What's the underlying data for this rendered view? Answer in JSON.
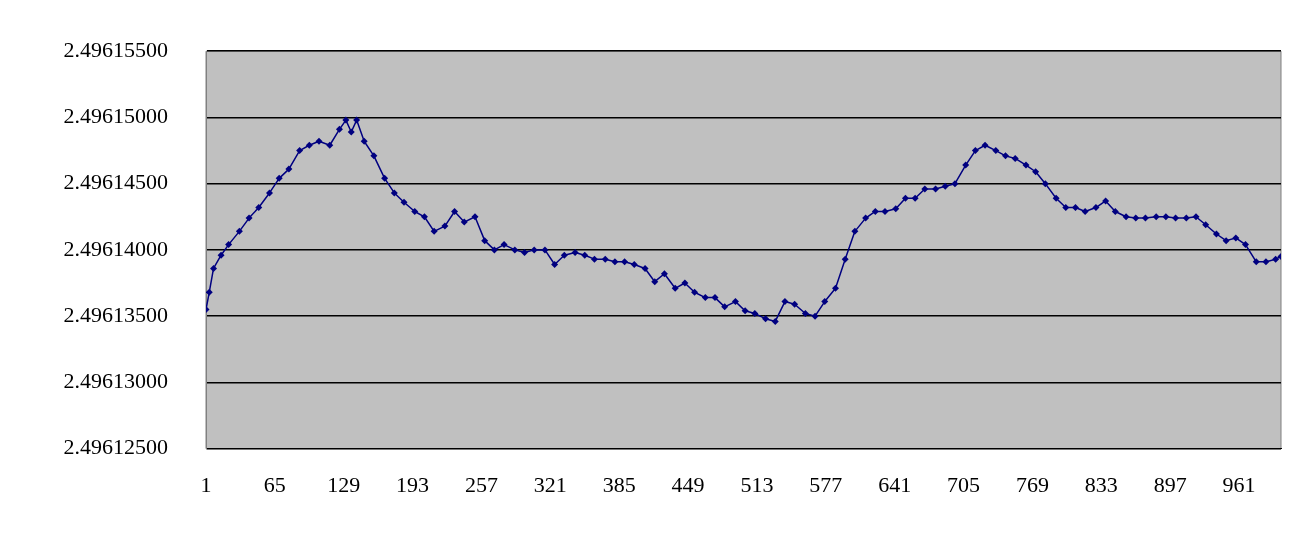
{
  "chart_data": {
    "type": "line",
    "x": [
      1,
      4,
      8,
      15,
      22,
      32,
      41,
      50,
      60,
      69,
      78,
      88,
      97,
      106,
      116,
      125,
      131,
      136,
      141,
      148,
      157,
      167,
      176,
      185,
      195,
      204,
      213,
      223,
      232,
      241,
      251,
      260,
      269,
      278,
      288,
      297,
      306,
      316,
      325,
      334,
      344,
      353,
      362,
      372,
      381,
      390,
      399,
      409,
      418,
      427,
      437,
      446,
      455,
      465,
      474,
      483,
      493,
      502,
      511,
      521,
      530,
      539,
      548,
      558,
      567,
      576,
      586,
      595,
      604,
      614,
      623,
      632,
      642,
      651,
      660,
      669,
      679,
      688,
      697,
      707,
      716,
      725,
      735,
      744,
      753,
      763,
      772,
      781,
      791,
      800,
      809,
      818,
      828,
      837,
      846,
      856,
      865,
      874,
      884,
      893,
      902,
      912,
      921,
      930,
      940,
      949,
      958,
      967,
      977,
      986,
      995,
      1000
    ],
    "series": [
      {
        "color": "#000080",
        "values": [
          2.4961355,
          2.4961368,
          2.4961386,
          2.4961396,
          2.4961404,
          2.4961414,
          2.4961424,
          2.4961432,
          2.4961443,
          2.4961454,
          2.4961461,
          2.4961475,
          2.4961479,
          2.4961482,
          2.4961479,
          2.4961491,
          2.4961498,
          2.4961489,
          2.4961498,
          2.4961482,
          2.4961471,
          2.4961454,
          2.4961443,
          2.4961436,
          2.4961429,
          2.4961425,
          2.4961414,
          2.4961418,
          2.4961429,
          2.4961421,
          2.4961425,
          2.4961407,
          2.49614,
          2.4961404,
          2.49614,
          2.4961398,
          2.49614,
          2.49614,
          2.4961389,
          2.4961396,
          2.4961398,
          2.4961396,
          2.4961393,
          2.4961393,
          2.4961391,
          2.4961391,
          2.4961389,
          2.4961386,
          2.4961376,
          2.4961382,
          2.4961371,
          2.4961375,
          2.4961368,
          2.4961364,
          2.4961364,
          2.4961357,
          2.4961361,
          2.4961354,
          2.4961352,
          2.4961348,
          2.4961346,
          2.4961361,
          2.4961359,
          2.4961352,
          2.496135,
          2.4961361,
          2.4961371,
          2.4961393,
          2.4961414,
          2.4961424,
          2.4961429,
          2.4961429,
          2.4961431,
          2.4961439,
          2.4961439,
          2.4961446,
          2.4961446,
          2.4961448,
          2.496145,
          2.4961464,
          2.4961475,
          2.4961479,
          2.4961475,
          2.4961471,
          2.4961469,
          2.4961464,
          2.4961459,
          2.496145,
          2.4961439,
          2.4961432,
          2.4961432,
          2.4961429,
          2.4961432,
          2.4961437,
          2.4961429,
          2.4961425,
          2.4961424,
          2.4961424,
          2.4961425,
          2.4961425,
          2.4961424,
          2.4961424,
          2.4961425,
          2.4961419,
          2.4961412,
          2.4961407,
          2.4961409,
          2.4961404,
          2.4961391,
          2.4961391,
          2.4961393,
          2.4961395
        ]
      }
    ],
    "xlim": [
      1,
      1000
    ],
    "xticks": [
      1,
      65,
      129,
      193,
      257,
      321,
      385,
      449,
      513,
      577,
      641,
      705,
      769,
      833,
      897,
      961
    ],
    "ylim": [
      2.496125,
      2.496155
    ],
    "yticks": [
      {
        "value": 2.496125,
        "label": "2.49612500"
      },
      {
        "value": 2.49613,
        "label": "2.49613000"
      },
      {
        "value": 2.496135,
        "label": "2.49613500"
      },
      {
        "value": 2.49614,
        "label": "2.49614000"
      },
      {
        "value": 2.496145,
        "label": "2.49614500"
      },
      {
        "value": 2.49615,
        "label": "2.49615000"
      },
      {
        "value": 2.496155,
        "label": "2.49615500"
      }
    ],
    "grid": "y",
    "legend": false,
    "marker": "diamond",
    "line_style": "solid"
  }
}
